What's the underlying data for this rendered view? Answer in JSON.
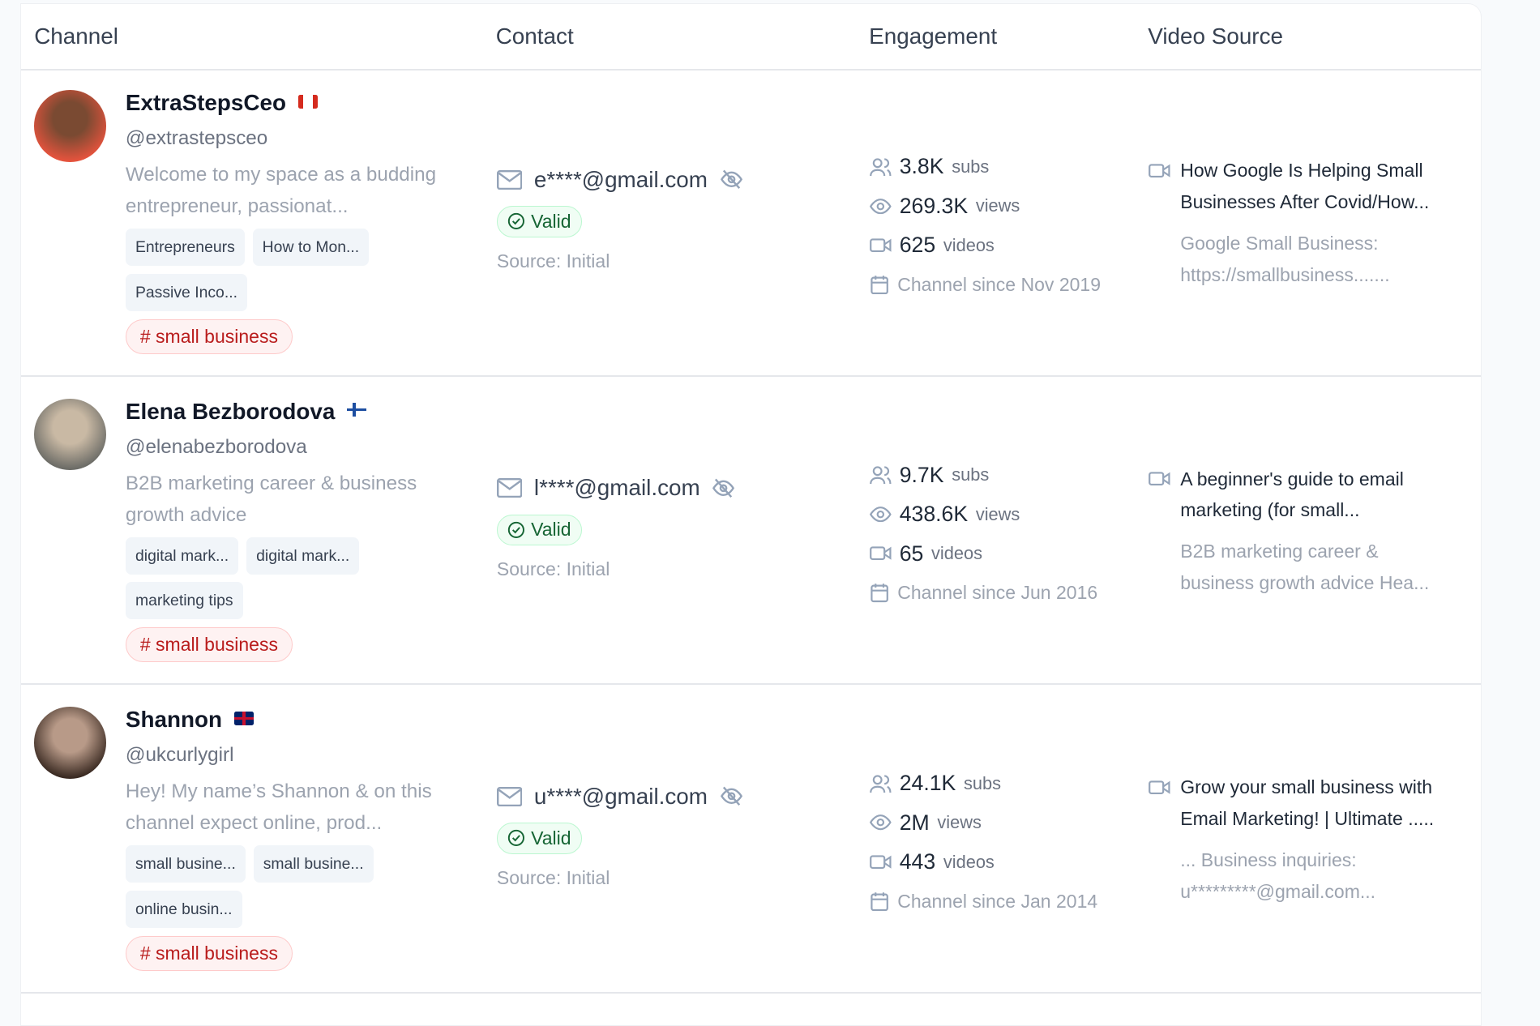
{
  "header": {
    "channel": "Channel",
    "contact": "Contact",
    "engagement": "Engagement",
    "video_source": "Video Source"
  },
  "rows": [
    {
      "name": "ExtraStepsCeo",
      "country": "Canada",
      "handle": "@extrastepsceo",
      "description": "Welcome to my space as a budding entrepreneur, passionat...",
      "tags": [
        "Entrepreneurs",
        "How to Mon...",
        "Passive Inco..."
      ],
      "keyword": "small business",
      "email": "e****@gmail.com",
      "status": "Valid",
      "source": "Source: Initial",
      "subs": "3.8K",
      "views": "269.3K",
      "videos": "625",
      "since": "Channel since Nov 2019",
      "video_title": "How Google Is Helping Small Businesses After Covid/How...",
      "video_desc": "Google Small Business: https://smallbusiness.......",
      "avatar_colors": [
        "#e5533d",
        "#7a4a32"
      ]
    },
    {
      "name": "Elena Bezborodova",
      "country": "Finland",
      "handle": "@elenabezborodova",
      "description": "B2B marketing career & business growth advice",
      "tags": [
        "digital mark...",
        "digital mark...",
        "marketing tips"
      ],
      "keyword": "small business",
      "email": "l****@gmail.com",
      "status": "Valid",
      "source": "Source: Initial",
      "subs": "9.7K",
      "views": "438.6K",
      "videos": "65",
      "since": "Channel since Jun 2016",
      "video_title": "A beginner's guide to email marketing (for small...",
      "video_desc": "B2B marketing career & business growth advice Hea...",
      "avatar_colors": [
        "#6b6b66",
        "#c9b9a4"
      ]
    },
    {
      "name": "Shannon",
      "country": "United Kingdom",
      "handle": "@ukcurlygirl",
      "description": "Hey! My name’s Shannon & on this channel expect online, prod...",
      "tags": [
        "small busine...",
        "small busine...",
        "online busin..."
      ],
      "keyword": "small business",
      "email": "u****@gmail.com",
      "status": "Valid",
      "source": "Source: Initial",
      "subs": "24.1K",
      "views": "2M",
      "videos": "443",
      "since": "Channel since Jan 2014",
      "video_title": "Grow your small business with Email Marketing! | Ultimate .....",
      "video_desc": "... Business inquiries: u*********@gmail.com...",
      "avatar_colors": [
        "#3a2a22",
        "#b89a88"
      ]
    }
  ],
  "labels": {
    "subs": "subs",
    "views": "views",
    "videos": "videos",
    "hash": "#"
  }
}
